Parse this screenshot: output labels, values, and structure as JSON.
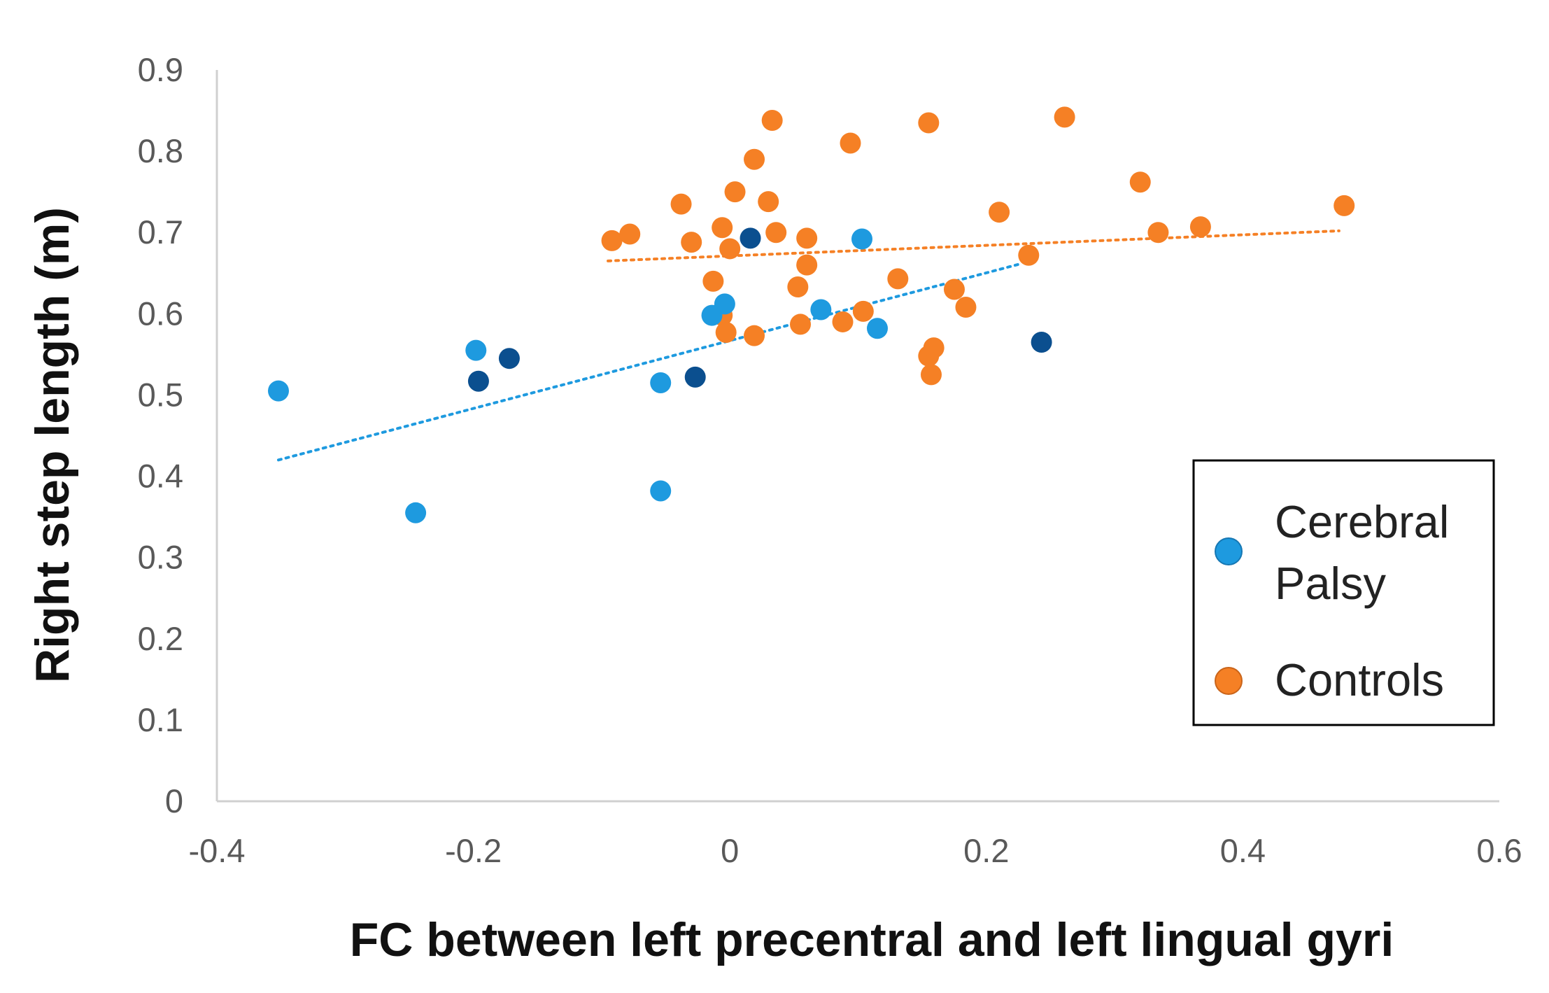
{
  "chart_data": {
    "type": "scatter",
    "title": "",
    "xlabel": "FC between left precentral and left lingual gyri",
    "ylabel": "Right step length (m)",
    "xlim": [
      -0.4,
      0.6
    ],
    "ylim": [
      0,
      0.9
    ],
    "x_ticks": [
      "-0.4",
      "-0.2",
      "0",
      "0.2",
      "0.4",
      "0.6"
    ],
    "y_ticks": [
      "0",
      "0.1",
      "0.2",
      "0.3",
      "0.4",
      "0.5",
      "0.6",
      "0.7",
      "0.8",
      "0.9"
    ],
    "legend_placement": "right",
    "series": [
      {
        "name": "Cerebral Palsy",
        "legend_lines": [
          "Cerebral",
          "Palsy"
        ],
        "color": "#1E9ADF",
        "dark_color": "#0B4F8F",
        "points": [
          {
            "x": -0.352,
            "y": 0.505
          },
          {
            "x": -0.245,
            "y": 0.355
          },
          {
            "x": -0.198,
            "y": 0.555
          },
          {
            "x": -0.054,
            "y": 0.515
          },
          {
            "x": -0.054,
            "y": 0.382
          },
          {
            "x": -0.014,
            "y": 0.598
          },
          {
            "x": -0.004,
            "y": 0.612
          },
          {
            "x": 0.071,
            "y": 0.605
          },
          {
            "x": 0.103,
            "y": 0.692
          },
          {
            "x": 0.115,
            "y": 0.582
          }
        ],
        "dark_points": [
          {
            "x": -0.196,
            "y": 0.517
          },
          {
            "x": -0.172,
            "y": 0.545
          },
          {
            "x": -0.027,
            "y": 0.522
          },
          {
            "x": 0.016,
            "y": 0.693
          },
          {
            "x": 0.243,
            "y": 0.565
          }
        ],
        "trendline": {
          "x": [
            -0.352,
            0.228
          ],
          "y": [
            0.42,
            0.662
          ]
        }
      },
      {
        "name": "Controls",
        "color": "#F58025",
        "points": [
          {
            "x": -0.092,
            "y": 0.69
          },
          {
            "x": -0.078,
            "y": 0.698
          },
          {
            "x": -0.038,
            "y": 0.735
          },
          {
            "x": -0.03,
            "y": 0.688
          },
          {
            "x": -0.013,
            "y": 0.64
          },
          {
            "x": -0.006,
            "y": 0.706
          },
          {
            "x": -0.006,
            "y": 0.598
          },
          {
            "x": -0.003,
            "y": 0.577
          },
          {
            "x": 0.0,
            "y": 0.68
          },
          {
            "x": 0.004,
            "y": 0.75
          },
          {
            "x": 0.019,
            "y": 0.79
          },
          {
            "x": 0.019,
            "y": 0.573
          },
          {
            "x": 0.03,
            "y": 0.738
          },
          {
            "x": 0.033,
            "y": 0.838
          },
          {
            "x": 0.036,
            "y": 0.7
          },
          {
            "x": 0.053,
            "y": 0.633
          },
          {
            "x": 0.055,
            "y": 0.587
          },
          {
            "x": 0.06,
            "y": 0.66
          },
          {
            "x": 0.06,
            "y": 0.693
          },
          {
            "x": 0.088,
            "y": 0.59
          },
          {
            "x": 0.094,
            "y": 0.81
          },
          {
            "x": 0.104,
            "y": 0.603
          },
          {
            "x": 0.131,
            "y": 0.643
          },
          {
            "x": 0.155,
            "y": 0.835
          },
          {
            "x": 0.155,
            "y": 0.548
          },
          {
            "x": 0.157,
            "y": 0.525
          },
          {
            "x": 0.159,
            "y": 0.558
          },
          {
            "x": 0.175,
            "y": 0.63
          },
          {
            "x": 0.184,
            "y": 0.608
          },
          {
            "x": 0.21,
            "y": 0.725
          },
          {
            "x": 0.233,
            "y": 0.672
          },
          {
            "x": 0.261,
            "y": 0.842
          },
          {
            "x": 0.32,
            "y": 0.762
          },
          {
            "x": 0.334,
            "y": 0.7
          },
          {
            "x": 0.367,
            "y": 0.707
          },
          {
            "x": 0.479,
            "y": 0.733
          }
        ],
        "trendline": {
          "x": [
            -0.095,
            0.475
          ],
          "y": [
            0.665,
            0.702
          ]
        }
      }
    ]
  }
}
